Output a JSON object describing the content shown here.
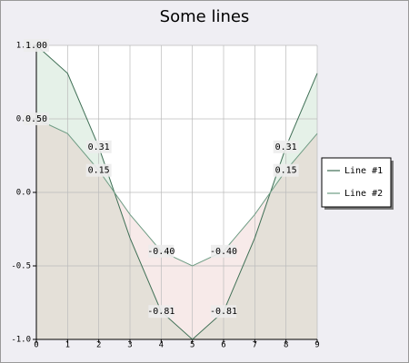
{
  "chart_data": {
    "type": "line",
    "title": "Some lines",
    "x": [
      0,
      1,
      2,
      3,
      4,
      5,
      6,
      7,
      8,
      9
    ],
    "series": [
      {
        "name": "Line #1",
        "color": "#3f6f55",
        "fill": "rgba(150,200,165,0.25)",
        "values": [
          1.0,
          0.81,
          0.31,
          -0.31,
          -0.81,
          -1.0,
          -0.81,
          -0.31,
          0.31,
          0.81
        ],
        "value_labels": [
          "1.00",
          null,
          "0.31",
          null,
          "-0.81",
          null,
          "-0.81",
          null,
          "0.31",
          null
        ]
      },
      {
        "name": "Line #2",
        "color": "#6f9c84",
        "fill": "rgba(225,180,175,0.28)",
        "values": [
          0.5,
          0.4,
          0.15,
          -0.15,
          -0.4,
          -0.5,
          -0.4,
          -0.15,
          0.15,
          0.4
        ],
        "value_labels": [
          "0.50",
          null,
          "0.15",
          null,
          "-0.40",
          null,
          "-0.40",
          null,
          "0.15",
          null
        ]
      }
    ],
    "xlim": [
      0,
      9
    ],
    "xticks": [
      0,
      1,
      2,
      3,
      4,
      5,
      6,
      7,
      8,
      9
    ],
    "ylim": [
      -1,
      1
    ],
    "yticks": [
      {
        "value": -1,
        "label": "-1.0"
      },
      -0.5,
      {
        "value": 0,
        "label": "0.0"
      },
      0.5,
      {
        "value": 1,
        "label": "1.0"
      }
    ],
    "grid": true,
    "legend": "right"
  }
}
